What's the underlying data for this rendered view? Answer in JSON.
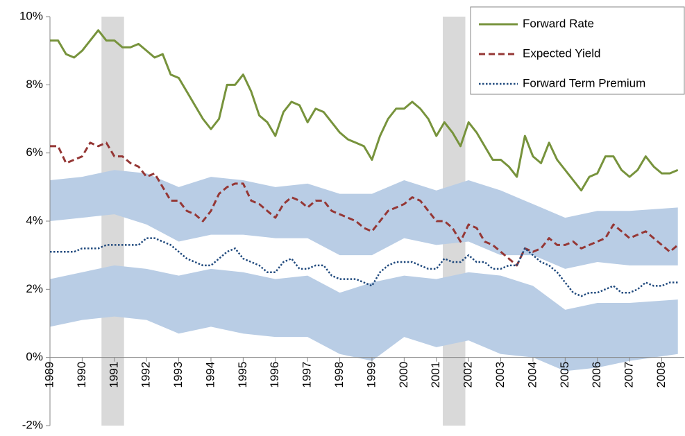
{
  "chart_data": {
    "type": "line",
    "x": [
      1989,
      1989.25,
      1989.5,
      1989.75,
      1990,
      1990.25,
      1990.5,
      1990.75,
      1991,
      1991.25,
      1991.5,
      1991.75,
      1992,
      1992.25,
      1992.5,
      1992.75,
      1993,
      1993.25,
      1993.5,
      1993.75,
      1994,
      1994.25,
      1994.5,
      1994.75,
      1995,
      1995.25,
      1995.5,
      1995.75,
      1996,
      1996.25,
      1996.5,
      1996.75,
      1997,
      1997.25,
      1997.5,
      1997.75,
      1998,
      1998.25,
      1998.5,
      1998.75,
      1999,
      1999.25,
      1999.5,
      1999.75,
      2000,
      2000.25,
      2000.5,
      2000.75,
      2001,
      2001.25,
      2001.5,
      2001.75,
      2002,
      2002.25,
      2002.5,
      2002.75,
      2003,
      2003.25,
      2003.5,
      2003.75,
      2004,
      2004.25,
      2004.5,
      2004.75,
      2005,
      2005.25,
      2005.5,
      2005.75,
      2006,
      2006.25,
      2006.5,
      2006.75,
      2007,
      2007.25,
      2007.5,
      2007.75,
      2008,
      2008.25,
      2008.5
    ],
    "series": [
      {
        "name": "Forward Rate",
        "color": "#77933c",
        "dash": "solid",
        "values": [
          9.3,
          9.3,
          8.9,
          8.8,
          9.0,
          9.3,
          9.6,
          9.3,
          9.3,
          9.1,
          9.1,
          9.2,
          9.0,
          8.8,
          8.9,
          8.3,
          8.2,
          7.8,
          7.4,
          7.0,
          6.7,
          7.0,
          8.0,
          8.0,
          8.3,
          7.8,
          7.1,
          6.9,
          6.5,
          7.2,
          7.5,
          7.4,
          6.9,
          7.3,
          7.2,
          6.9,
          6.6,
          6.4,
          6.3,
          6.2,
          5.8,
          6.5,
          7.0,
          7.3,
          7.3,
          7.5,
          7.3,
          7.0,
          6.5,
          6.9,
          6.6,
          6.2,
          6.9,
          6.6,
          6.2,
          5.8,
          5.8,
          5.6,
          5.3,
          6.5,
          5.9,
          5.7,
          6.3,
          5.8,
          5.5,
          5.2,
          4.9,
          5.3,
          5.4,
          5.9,
          5.9,
          5.5,
          5.3,
          5.5,
          5.9,
          5.6,
          5.4,
          5.4,
          5.5
        ]
      },
      {
        "name": "Expected Yield",
        "color": "#953735",
        "dash": "dashed",
        "values": [
          6.2,
          6.2,
          5.7,
          5.8,
          5.9,
          6.3,
          6.2,
          6.3,
          5.9,
          5.9,
          5.7,
          5.6,
          5.3,
          5.4,
          5.0,
          4.6,
          4.6,
          4.3,
          4.2,
          4.0,
          4.3,
          4.8,
          5.0,
          5.1,
          5.1,
          4.6,
          4.5,
          4.3,
          4.1,
          4.5,
          4.7,
          4.6,
          4.4,
          4.6,
          4.6,
          4.3,
          4.2,
          4.1,
          4.0,
          3.8,
          3.7,
          4.0,
          4.3,
          4.4,
          4.5,
          4.7,
          4.6,
          4.3,
          4.0,
          4.0,
          3.8,
          3.4,
          3.9,
          3.8,
          3.4,
          3.3,
          3.1,
          2.9,
          2.7,
          3.2,
          3.1,
          3.2,
          3.5,
          3.3,
          3.3,
          3.4,
          3.2,
          3.3,
          3.4,
          3.5,
          3.9,
          3.7,
          3.5,
          3.6,
          3.7,
          3.5,
          3.3,
          3.1,
          3.3
        ]
      },
      {
        "name": "Forward Term Premium",
        "color": "#1f497d",
        "dash": "dotted",
        "values": [
          3.1,
          3.1,
          3.1,
          3.1,
          3.2,
          3.2,
          3.2,
          3.3,
          3.3,
          3.3,
          3.3,
          3.3,
          3.5,
          3.5,
          3.4,
          3.3,
          3.1,
          2.9,
          2.8,
          2.7,
          2.7,
          2.9,
          3.1,
          3.2,
          2.9,
          2.8,
          2.7,
          2.5,
          2.5,
          2.8,
          2.9,
          2.6,
          2.6,
          2.7,
          2.7,
          2.4,
          2.3,
          2.3,
          2.3,
          2.2,
          2.1,
          2.5,
          2.7,
          2.8,
          2.8,
          2.8,
          2.7,
          2.6,
          2.6,
          2.9,
          2.8,
          2.8,
          3.0,
          2.8,
          2.8,
          2.6,
          2.6,
          2.7,
          2.7,
          3.2,
          3.0,
          2.8,
          2.7,
          2.5,
          2.2,
          1.9,
          1.8,
          1.9,
          1.9,
          2.0,
          2.1,
          1.9,
          1.9,
          2.0,
          2.2,
          2.1,
          2.1,
          2.2,
          2.2
        ]
      }
    ],
    "bands": [
      {
        "color": "#b9cde5",
        "x": [
          1989,
          1990,
          1991,
          1992,
          1993,
          1994,
          1995,
          1996,
          1997,
          1998,
          1999,
          2000,
          2001,
          2002,
          2003,
          2004,
          2005,
          2006,
          2007,
          2008.5
        ],
        "upper": [
          5.2,
          5.3,
          5.5,
          5.4,
          5.0,
          5.3,
          5.2,
          5.0,
          5.1,
          4.8,
          4.8,
          5.2,
          4.9,
          5.2,
          4.9,
          4.5,
          4.1,
          4.3,
          4.3,
          4.4
        ],
        "lower": [
          4.0,
          4.1,
          4.2,
          3.9,
          3.4,
          3.6,
          3.6,
          3.5,
          3.5,
          3.0,
          3.0,
          3.5,
          3.3,
          3.4,
          3.0,
          3.0,
          2.6,
          2.8,
          2.7,
          2.7
        ]
      },
      {
        "color": "#b9cde5",
        "x": [
          1989,
          1990,
          1991,
          1992,
          1993,
          1994,
          1995,
          1996,
          1997,
          1998,
          1999,
          2000,
          2001,
          2002,
          2003,
          2004,
          2005,
          2006,
          2007,
          2008.5
        ],
        "upper": [
          2.3,
          2.5,
          2.7,
          2.6,
          2.4,
          2.6,
          2.5,
          2.3,
          2.4,
          1.9,
          2.2,
          2.4,
          2.3,
          2.5,
          2.4,
          2.1,
          1.4,
          1.6,
          1.6,
          1.7
        ],
        "lower": [
          0.9,
          1.1,
          1.2,
          1.1,
          0.7,
          0.9,
          0.7,
          0.6,
          0.6,
          0.1,
          -0.1,
          0.6,
          0.3,
          0.5,
          0.1,
          0.0,
          -0.4,
          -0.3,
          -0.1,
          0.1
        ]
      }
    ],
    "shaded_spans": {
      "color": "#d9d9d9",
      "spans": [
        [
          1990.6,
          1991.3
        ],
        [
          2001.2,
          2001.9
        ]
      ]
    },
    "xlim": [
      1989,
      2008.7
    ],
    "xticks": [
      1989,
      1990,
      1991,
      1992,
      1993,
      1994,
      1995,
      1996,
      1997,
      1998,
      1999,
      2000,
      2001,
      2002,
      2003,
      2004,
      2005,
      2006,
      2007,
      2008
    ],
    "ylim": [
      -2,
      10
    ],
    "yticks": [
      {
        "value": -2,
        "label": "-2%"
      },
      {
        "value": 0,
        "label": "0%"
      },
      {
        "value": 2,
        "label": "2%"
      },
      {
        "value": 4,
        "label": "4%"
      },
      {
        "value": 6,
        "label": "6%"
      },
      {
        "value": 8,
        "label": "8%"
      },
      {
        "value": 10,
        "label": "10%"
      }
    ],
    "legend": "top-right"
  }
}
